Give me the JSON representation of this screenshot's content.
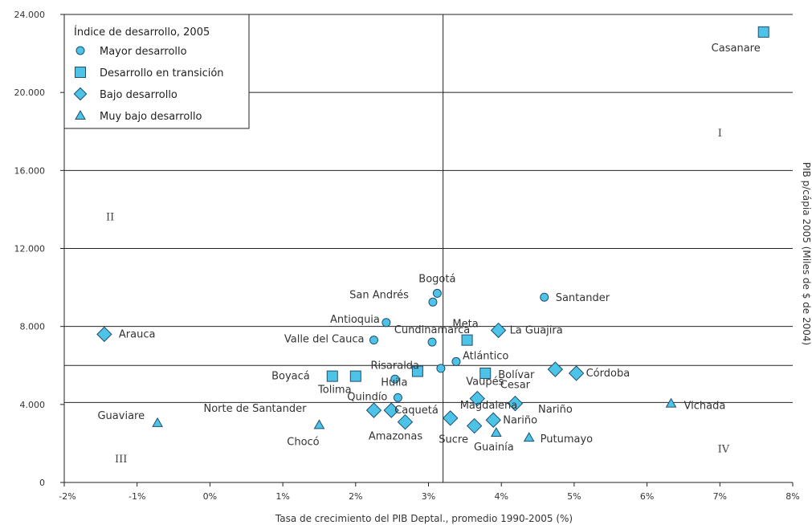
{
  "chart_data": {
    "type": "scatter",
    "xlabel": "Tasa de crecimiento del PIB Deptal., promedio 1990-2005 (%)",
    "ylabel": "PIB p/cápia 2005 (Miles de $ de 2004)",
    "xlim": [
      -2,
      8
    ],
    "ylim": [
      0,
      24000
    ],
    "x_ticks": [
      {
        "value": -2,
        "label": "-2%"
      },
      {
        "value": -1,
        "label": "-1%"
      },
      {
        "value": 0,
        "label": "0%"
      },
      {
        "value": 1,
        "label": "1%"
      },
      {
        "value": 2,
        "label": "2%"
      },
      {
        "value": 3,
        "label": "3%"
      },
      {
        "value": 4,
        "label": "4%"
      },
      {
        "value": 5,
        "label": "5%"
      },
      {
        "value": 6,
        "label": "6%"
      },
      {
        "value": 7,
        "label": "7%"
      },
      {
        "value": 8,
        "label": "8%"
      }
    ],
    "y_ticks": [
      {
        "value": 0,
        "label": "0"
      },
      {
        "value": 4000,
        "label": "4.000"
      },
      {
        "value": 8000,
        "label": "8.000"
      },
      {
        "value": 12000,
        "label": "12.000"
      },
      {
        "value": 16000,
        "label": "16.000"
      },
      {
        "value": 20000,
        "label": "20.000"
      },
      {
        "value": 24000,
        "label": "24.000"
      }
    ],
    "h_gridlines": [
      4100,
      6000,
      8000,
      12000,
      16000,
      20000
    ],
    "reference_lines": {
      "x": 3.2,
      "y": 4100
    },
    "legend": {
      "title": "Índice de desarrollo, 2005",
      "placement": "top-left",
      "entries": [
        {
          "name": "Mayor desarrollo",
          "marker": "circle"
        },
        {
          "name": "Desarrollo en transición",
          "marker": "square"
        },
        {
          "name": "Bajo desarrollo",
          "marker": "diamond"
        },
        {
          "name": "Muy bajo desarrollo",
          "marker": "triangle"
        }
      ]
    },
    "marker_color": "#4dc3e8",
    "marker_stroke": "#1f4f6e",
    "quadrant_labels": [
      {
        "text": "I",
        "x": 7.0,
        "y": 17900
      },
      {
        "text": "II",
        "x": -1.37,
        "y": 13600
      },
      {
        "text": "III",
        "x": -1.22,
        "y": 1200
      },
      {
        "text": "IV",
        "x": 7.05,
        "y": 1700
      }
    ],
    "series": [
      {
        "name": "Mayor desarrollo",
        "marker": "circle",
        "points": [
          {
            "label": "Bogotá",
            "x": 3.12,
            "y": 9700
          },
          {
            "label": "San Andrés",
            "x": 3.06,
            "y": 9250
          },
          {
            "label": "Santander",
            "x": 4.59,
            "y": 9500
          },
          {
            "label": "Antioquia",
            "x": 2.42,
            "y": 8200
          },
          {
            "label": "Valle del Cauca",
            "x": 2.25,
            "y": 7300
          },
          {
            "label": "Cundinamarca",
            "x": 3.05,
            "y": 7200
          },
          {
            "label": "Atlántico",
            "x": 3.38,
            "y": 6200
          },
          {
            "label": "",
            "x": 3.17,
            "y": 5850
          },
          {
            "label": "Risaralda",
            "x": 2.54,
            "y": 5300
          },
          {
            "label": "Quindío",
            "x": 2.58,
            "y": 4350
          }
        ]
      },
      {
        "name": "Desarrollo en transición",
        "marker": "square",
        "points": [
          {
            "label": "Casanare",
            "x": 7.6,
            "y": 23100
          },
          {
            "label": "Meta",
            "x": 3.53,
            "y": 7300
          },
          {
            "label": "Boyacá",
            "x": 1.68,
            "y": 5450
          },
          {
            "label": "Tolima",
            "x": 2.0,
            "y": 5450
          },
          {
            "label": "Huila",
            "x": 2.85,
            "y": 5700
          },
          {
            "label": "Bolívar",
            "x": 3.78,
            "y": 5600
          }
        ]
      },
      {
        "name": "Bajo desarrollo",
        "marker": "diamond",
        "points": [
          {
            "label": "Arauca",
            "x": -1.45,
            "y": 7600
          },
          {
            "label": "La Guajira",
            "x": 3.96,
            "y": 7800
          },
          {
            "label": "Córdoba",
            "x": 5.03,
            "y": 5600
          },
          {
            "label": "",
            "x": 4.74,
            "y": 5800
          },
          {
            "label": "Cesar",
            "x": 4.19,
            "y": 4050
          },
          {
            "label": "Vaupés",
            "x": 3.67,
            "y": 4300
          },
          {
            "label": "Caquetá",
            "x": 2.49,
            "y": 3700
          },
          {
            "label": "Norte de Santander",
            "x": 2.25,
            "y": 3700
          },
          {
            "label": "Amazonas",
            "x": 2.68,
            "y": 3100
          },
          {
            "label": "Magdalena",
            "x": 3.3,
            "y": 3300
          },
          {
            "label": "Sucre",
            "x": 3.63,
            "y": 2900
          },
          {
            "label": "Nariño",
            "x": 3.89,
            "y": 3200
          }
        ]
      },
      {
        "name": "Muy bajo desarrollo",
        "marker": "triangle",
        "points": [
          {
            "label": "Vichada",
            "x": 6.33,
            "y": 4050
          },
          {
            "label": "Guaviare",
            "x": -0.72,
            "y": 3050
          },
          {
            "label": "Chocó",
            "x": 1.5,
            "y": 2950
          },
          {
            "label": "Guainía",
            "x": 3.93,
            "y": 2550
          },
          {
            "label": "Putumayo",
            "x": 4.38,
            "y": 2300
          }
        ]
      }
    ],
    "free_labels": [
      "Nariño"
    ]
  }
}
